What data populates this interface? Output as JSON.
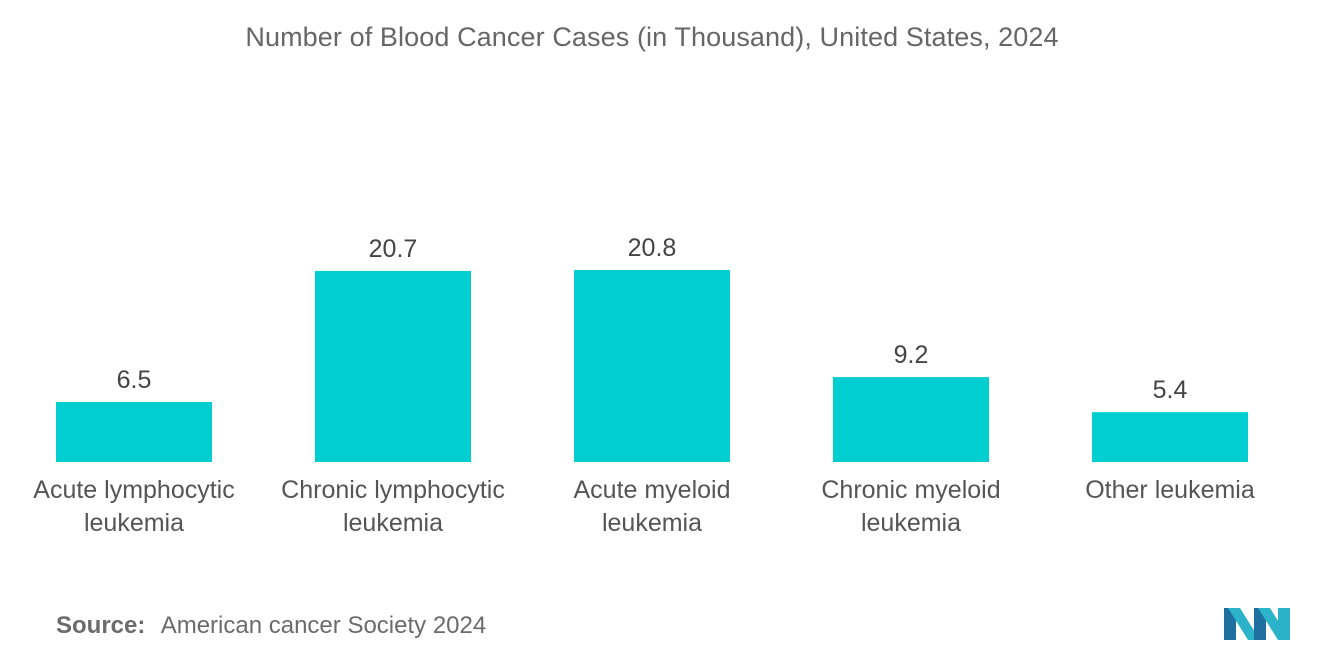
{
  "chart_data": {
    "type": "bar",
    "title": "Number of Blood Cancer Cases (in Thousand), United States, 2024",
    "categories": [
      [
        "Acute lymphocytic",
        "leukemia"
      ],
      [
        "Chronic lymphocytic",
        "leukemia"
      ],
      [
        "Acute myeloid",
        "leukemia"
      ],
      [
        "Chronic myeloid",
        "leukemia"
      ],
      [
        "Other leukemia"
      ]
    ],
    "values": [
      6.5,
      20.7,
      20.8,
      9.2,
      5.4
    ],
    "value_labels": [
      "6.5",
      "20.7",
      "20.8",
      "9.2",
      "5.4"
    ],
    "xlabel": "",
    "ylabel": "",
    "ylim": [
      0,
      21
    ],
    "grid": false,
    "bar_color": "#00ced1"
  },
  "source": {
    "label": "Source:",
    "text": "American cancer Society 2024"
  },
  "logo": {
    "icon": "mordor-intelligence-logo-icon",
    "colors": [
      "#1f6f9f",
      "#2bb3c9"
    ]
  }
}
